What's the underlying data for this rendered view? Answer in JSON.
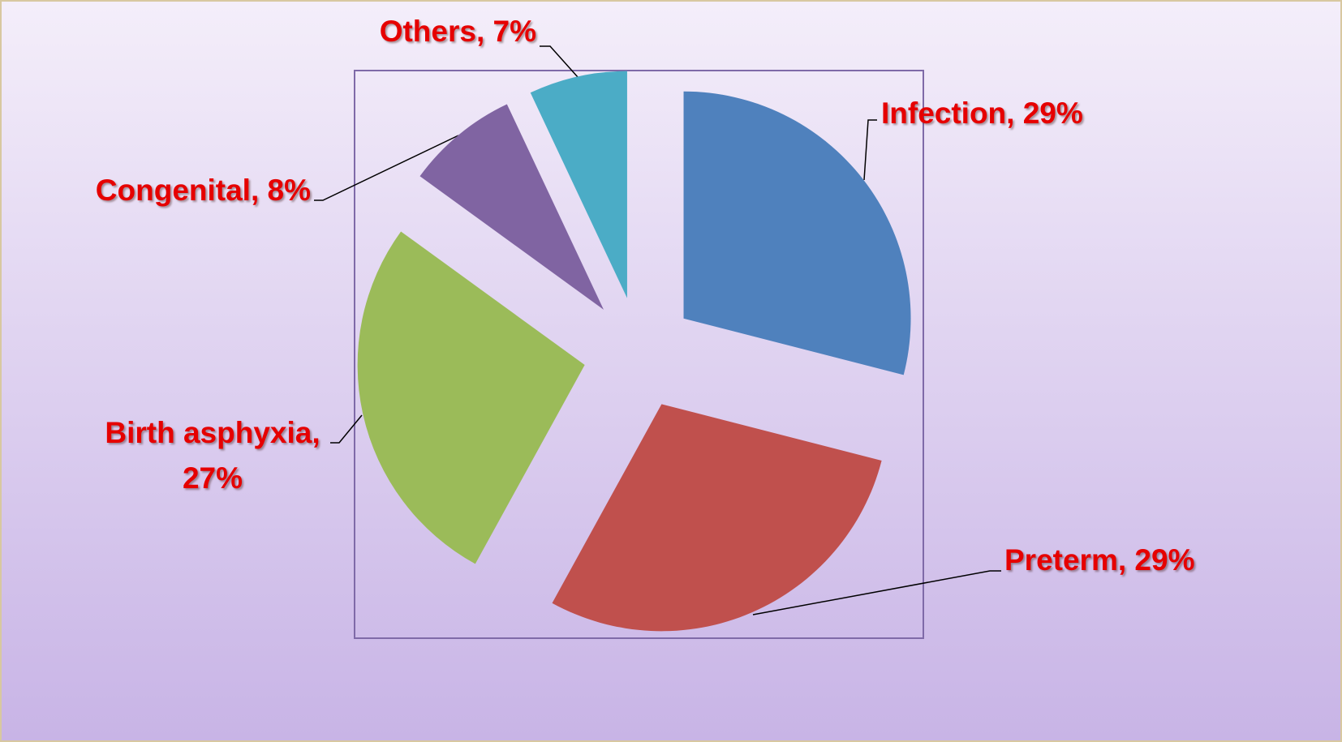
{
  "chart_data": {
    "type": "pie",
    "values": [
      29,
      29,
      27,
      8,
      7
    ],
    "value_labels": [
      "Infection, 29%",
      "Preterm, 29%",
      "Birth asphyxia, 27%",
      "Congenital, 8%",
      "Others, 7%"
    ],
    "colors": [
      "#4f81bd",
      "#c0504d",
      "#9bbb59",
      "#8064a2",
      "#4bacc6"
    ],
    "start_angle": 0,
    "direction": "clockwise",
    "exploded": true
  }
}
